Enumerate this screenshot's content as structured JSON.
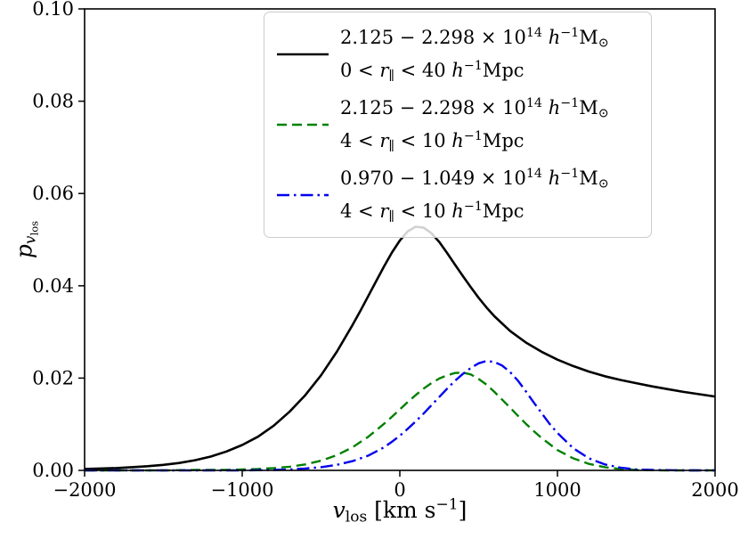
{
  "chart_data": {
    "type": "line",
    "title": "",
    "xlabel": "v_los [km s^-1]",
    "ylabel": "p_{v_los}",
    "xlabel_parts": {
      "var": "v",
      "sub": "los",
      "unit_pre": " [km s",
      "sup": "−1",
      "close": "]"
    },
    "ylabel_parts": {
      "base": "p",
      "sub_var": "v",
      "sub_sub": "los"
    },
    "xlim": [
      -2000,
      2000
    ],
    "ylim": [
      0,
      0.1
    ],
    "xticks": [
      -2000,
      -1000,
      0,
      1000,
      2000
    ],
    "xtick_labels": [
      "−2000",
      "−1000",
      "0",
      "1000",
      "2000"
    ],
    "yticks": [
      0,
      0.02,
      0.04,
      0.06,
      0.08,
      0.1
    ],
    "ytick_labels": [
      "0.00",
      "0.02",
      "0.04",
      "0.06",
      "0.08",
      "0.10"
    ],
    "grid": false,
    "legend": {
      "position": "upper center-right",
      "border_color": "#cccccc",
      "background": "rgba(255,255,255,0.82)"
    },
    "series": [
      {
        "id": "high-mass-wide",
        "label_lines": [
          "2.125 − 2.298 × 10^{14} h^{−1}M_{⊙}",
          "0 < r_{∥} < 40 h^{−1}Mpc"
        ],
        "color": "#000000",
        "style": "solid",
        "dash": "",
        "width": 2.6,
        "points": [
          [
            -2000,
            0.0003
          ],
          [
            -1900,
            0.0004
          ],
          [
            -1800,
            0.0005
          ],
          [
            -1700,
            0.0007
          ],
          [
            -1600,
            0.0009
          ],
          [
            -1500,
            0.0012
          ],
          [
            -1400,
            0.0016
          ],
          [
            -1300,
            0.0022
          ],
          [
            -1200,
            0.003
          ],
          [
            -1100,
            0.0041
          ],
          [
            -1000,
            0.0055
          ],
          [
            -900,
            0.0073
          ],
          [
            -800,
            0.0097
          ],
          [
            -700,
            0.0127
          ],
          [
            -600,
            0.0163
          ],
          [
            -500,
            0.0206
          ],
          [
            -400,
            0.0257
          ],
          [
            -300,
            0.0315
          ],
          [
            -250,
            0.0346
          ],
          [
            -200,
            0.0378
          ],
          [
            -150,
            0.041
          ],
          [
            -100,
            0.0442
          ],
          [
            -50,
            0.0472
          ],
          [
            0,
            0.0498
          ],
          [
            50,
            0.0518
          ],
          [
            100,
            0.0528
          ],
          [
            150,
            0.0526
          ],
          [
            200,
            0.0514
          ],
          [
            250,
            0.0495
          ],
          [
            300,
            0.0471
          ],
          [
            350,
            0.0446
          ],
          [
            400,
            0.0421
          ],
          [
            450,
            0.0397
          ],
          [
            500,
            0.0374
          ],
          [
            550,
            0.0353
          ],
          [
            600,
            0.0334
          ],
          [
            700,
            0.0302
          ],
          [
            800,
            0.0277
          ],
          [
            900,
            0.0257
          ],
          [
            1000,
            0.024
          ],
          [
            1100,
            0.0226
          ],
          [
            1200,
            0.0214
          ],
          [
            1300,
            0.0204
          ],
          [
            1400,
            0.0196
          ],
          [
            1500,
            0.0189
          ],
          [
            1600,
            0.0182
          ],
          [
            1700,
            0.0176
          ],
          [
            1800,
            0.017
          ],
          [
            1900,
            0.0165
          ],
          [
            2000,
            0.016
          ]
        ]
      },
      {
        "id": "high-mass-narrow",
        "label_lines": [
          "2.125 − 2.298 × 10^{14} h^{−1}M_{⊙}",
          "4 < r_{∥} < 10 h^{−1}Mpc"
        ],
        "color": "#008000",
        "style": "dashed",
        "dash": "11,6",
        "width": 2.4,
        "points": [
          [
            -2000,
            0
          ],
          [
            -1500,
            0
          ],
          [
            -1300,
            0.0001
          ],
          [
            -1100,
            0.0001
          ],
          [
            -1000,
            0.0002
          ],
          [
            -900,
            0.0003
          ],
          [
            -800,
            0.0005
          ],
          [
            -700,
            0.0008
          ],
          [
            -600,
            0.0013
          ],
          [
            -500,
            0.0021
          ],
          [
            -400,
            0.0033
          ],
          [
            -300,
            0.005
          ],
          [
            -200,
            0.0073
          ],
          [
            -100,
            0.0101
          ],
          [
            -50,
            0.0116
          ],
          [
            0,
            0.0132
          ],
          [
            50,
            0.0148
          ],
          [
            100,
            0.0163
          ],
          [
            150,
            0.0177
          ],
          [
            200,
            0.0189
          ],
          [
            250,
            0.0199
          ],
          [
            300,
            0.0206
          ],
          [
            350,
            0.0211
          ],
          [
            400,
            0.0212
          ],
          [
            450,
            0.0208
          ],
          [
            500,
            0.0198
          ],
          [
            550,
            0.0186
          ],
          [
            600,
            0.017
          ],
          [
            650,
            0.0153
          ],
          [
            700,
            0.0136
          ],
          [
            750,
            0.0118
          ],
          [
            800,
            0.0101
          ],
          [
            850,
            0.0085
          ],
          [
            900,
            0.007
          ],
          [
            1000,
            0.0044
          ],
          [
            1100,
            0.0026
          ],
          [
            1200,
            0.0014
          ],
          [
            1300,
            0.0007
          ],
          [
            1400,
            0.0003
          ],
          [
            1500,
            0.0001
          ],
          [
            1700,
            0
          ],
          [
            2000,
            0
          ]
        ]
      },
      {
        "id": "low-mass-narrow",
        "label_lines": [
          "0.970 − 1.049 × 10^{14} h^{−1}M_{⊙}",
          "4 < r_{∥} < 10 h^{−1}Mpc"
        ],
        "color": "#0000ee",
        "style": "dashdot",
        "dash": "14,5,2.5,5",
        "width": 2.4,
        "points": [
          [
            -2000,
            0
          ],
          [
            -1000,
            0
          ],
          [
            -800,
            0.0001
          ],
          [
            -700,
            0.0002
          ],
          [
            -600,
            0.0004
          ],
          [
            -500,
            0.0007
          ],
          [
            -400,
            0.0012
          ],
          [
            -300,
            0.002
          ],
          [
            -200,
            0.0032
          ],
          [
            -100,
            0.005
          ],
          [
            -50,
            0.0062
          ],
          [
            0,
            0.0075
          ],
          [
            50,
            0.009
          ],
          [
            100,
            0.0106
          ],
          [
            150,
            0.0123
          ],
          [
            200,
            0.0141
          ],
          [
            250,
            0.0159
          ],
          [
            300,
            0.0177
          ],
          [
            350,
            0.0194
          ],
          [
            400,
            0.0209
          ],
          [
            450,
            0.0222
          ],
          [
            500,
            0.0232
          ],
          [
            550,
            0.0237
          ],
          [
            600,
            0.0235
          ],
          [
            650,
            0.0227
          ],
          [
            700,
            0.0213
          ],
          [
            750,
            0.0194
          ],
          [
            800,
            0.0171
          ],
          [
            850,
            0.0147
          ],
          [
            900,
            0.0124
          ],
          [
            950,
            0.0101
          ],
          [
            1000,
            0.0081
          ],
          [
            1100,
            0.0048
          ],
          [
            1200,
            0.0026
          ],
          [
            1300,
            0.0013
          ],
          [
            1400,
            0.0006
          ],
          [
            1500,
            0.0002
          ],
          [
            1600,
            0.0001
          ],
          [
            1800,
            0
          ],
          [
            2000,
            0
          ]
        ]
      }
    ]
  }
}
